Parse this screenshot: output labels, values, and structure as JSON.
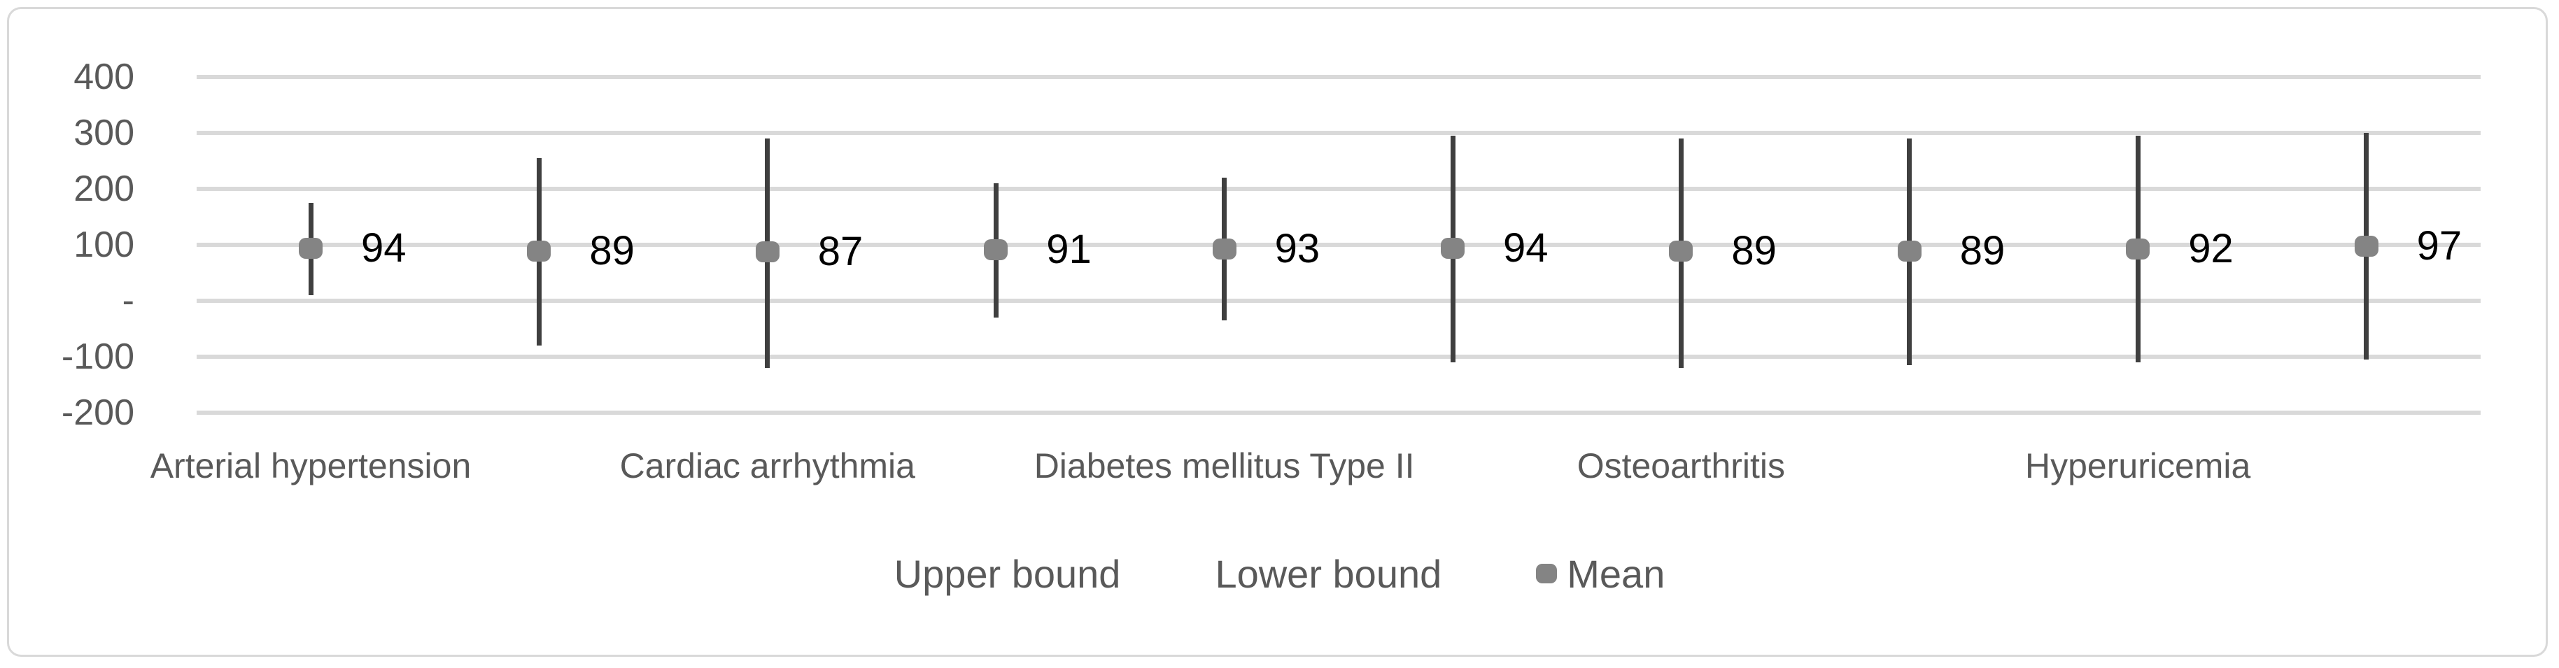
{
  "chart_data": {
    "type": "scatter",
    "subtype": "high-low-error-bars-with-mean-markers",
    "title": "",
    "xlabel": "",
    "ylabel": "",
    "categories": [
      "Arterial hypertension",
      "Cardiac arrhythmia",
      "Diabetes mellitus Type II",
      "Osteoarthritis",
      "Hyperuricemia"
    ],
    "points_per_category": 2,
    "series": [
      {
        "name": "Upper bound",
        "values": [
          175,
          255,
          290,
          210,
          220,
          295,
          290,
          290,
          295,
          300
        ]
      },
      {
        "name": "Lower bound",
        "values": [
          10,
          -80,
          -120,
          -30,
          -35,
          -110,
          -120,
          -115,
          -110,
          -105
        ]
      },
      {
        "name": "Mean",
        "values": [
          94,
          89,
          87,
          91,
          93,
          94,
          89,
          89,
          92,
          97
        ]
      }
    ],
    "data_labels": [
      "94",
      "89",
      "87",
      "91",
      "93",
      "94",
      "89",
      "89",
      "92",
      "97"
    ],
    "ylim": [
      -200,
      400
    ],
    "y_tick_labels": [
      "400",
      "300",
      "200",
      "100",
      "-",
      "-100",
      "-200"
    ],
    "y_tick_values": [
      400,
      300,
      200,
      100,
      0,
      -100,
      -200
    ],
    "grid": true,
    "legend_position": "bottom"
  },
  "legend": {
    "items": [
      {
        "label": "Upper bound",
        "marker": "none"
      },
      {
        "label": "Lower bound",
        "marker": "none"
      },
      {
        "label": "Mean",
        "marker": "dot",
        "marker_color": "#848484"
      }
    ]
  },
  "colors": {
    "background": "#ffffff",
    "chart_border": "#d9d9d9",
    "gridline": "#d9d9d9",
    "error_bar_line": "#3f3f3f",
    "mean_marker": "#848484",
    "axis_text": "#595959",
    "data_label_text": "#000000"
  }
}
